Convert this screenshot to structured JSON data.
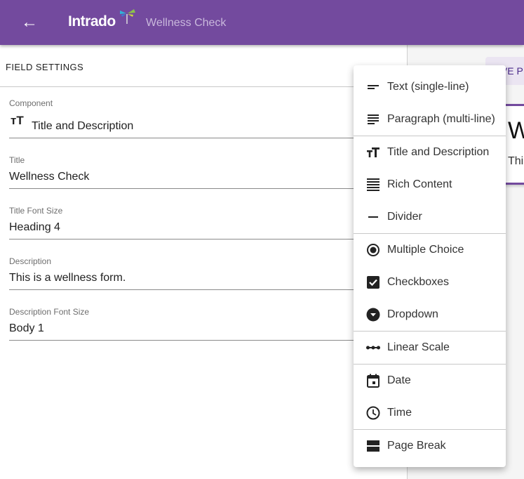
{
  "appbar": {
    "brand": "Intrado",
    "title": "Wellness Check"
  },
  "field_settings": {
    "heading": "FIELD SETTINGS",
    "fields": [
      {
        "label": "Component",
        "value": "Title and Description"
      },
      {
        "label": "Title",
        "value": "Wellness Check"
      },
      {
        "label": "Title Font Size",
        "value": "Heading 4"
      },
      {
        "label": "Description",
        "value": "This is a wellness form."
      },
      {
        "label": "Description Font Size",
        "value": "Body 1"
      }
    ]
  },
  "preview": {
    "chip_label": "IVE P",
    "card_title": "Wellness Check",
    "card_description": "This is a wellness form."
  },
  "menu": {
    "items": [
      {
        "label": "Text (single-line)",
        "icon": "short-text-icon"
      },
      {
        "label": "Paragraph (multi-line)",
        "icon": "subject-icon"
      },
      {
        "label": "Title and Description",
        "icon": "text-fields-icon"
      },
      {
        "label": "Rich Content",
        "icon": "format-align-justify-icon"
      },
      {
        "label": "Divider",
        "icon": "remove-icon"
      },
      {
        "label": "Multiple Choice",
        "icon": "radio-button-checked-icon"
      },
      {
        "label": "Checkboxes",
        "icon": "check-box-icon"
      },
      {
        "label": "Dropdown",
        "icon": "arrow-drop-down-circle-icon"
      },
      {
        "label": "Linear Scale",
        "icon": "linear-scale-icon"
      },
      {
        "label": "Date",
        "icon": "calendar-icon"
      },
      {
        "label": "Time",
        "icon": "clock-icon"
      },
      {
        "label": "Page Break",
        "icon": "page-break-icon"
      }
    ]
  },
  "colors": {
    "brand": "#734a9e"
  }
}
